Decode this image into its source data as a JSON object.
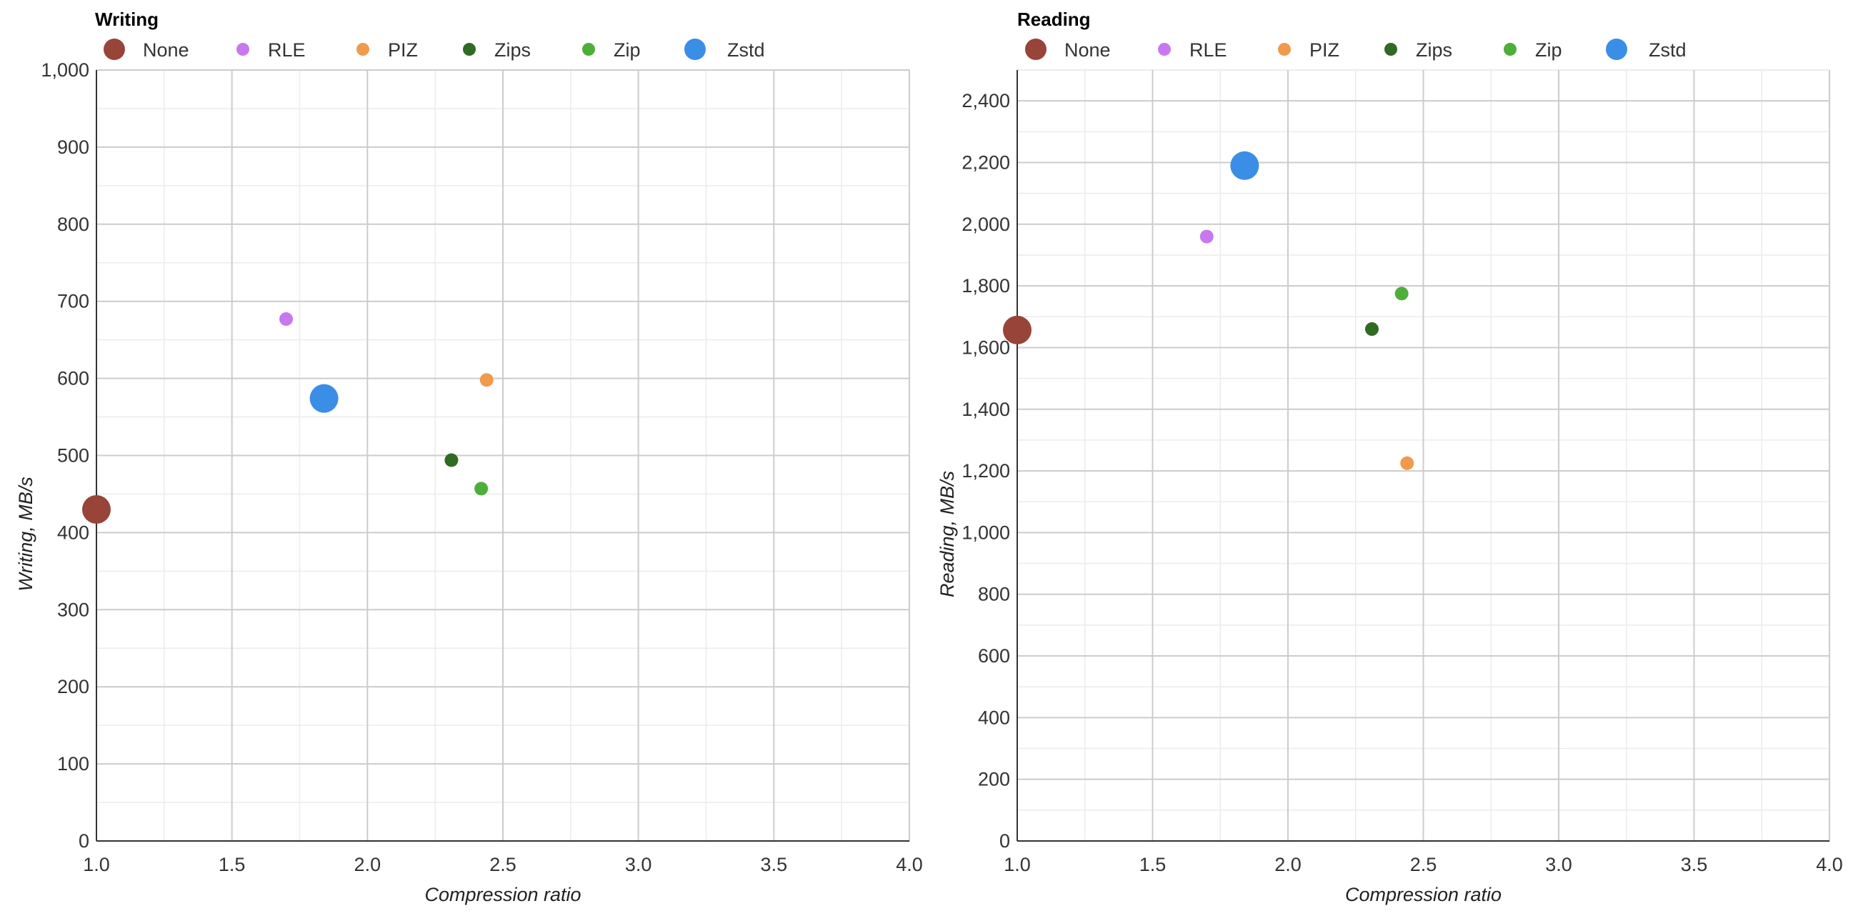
{
  "legend_colors": {
    "None": "#984439",
    "RLE": "#c878ee",
    "PIZ": "#f09a4c",
    "Zips": "#2f6b22",
    "Zip": "#4daf3a",
    "Zstd": "#3b8ee5"
  },
  "point_sizes": {
    "None": 20,
    "RLE": 10,
    "PIZ": 10,
    "Zips": 10,
    "Zip": 10,
    "Zstd": 20
  },
  "chart_data": [
    {
      "type": "scatter",
      "title": "Writing",
      "xlabel": "Compression ratio",
      "ylabel": "Writing, MB/s",
      "xlim": [
        1.0,
        4.0
      ],
      "ylim": [
        0,
        1000
      ],
      "x_ticks": [
        "1.0",
        "1.5",
        "2.0",
        "2.5",
        "3.0",
        "3.5",
        "4.0"
      ],
      "y_ticks": [
        "0",
        "100",
        "200",
        "300",
        "400",
        "500",
        "600",
        "700",
        "800",
        "900",
        "1,000"
      ],
      "y_tick_values": [
        0,
        100,
        200,
        300,
        400,
        500,
        600,
        700,
        800,
        900,
        1000
      ],
      "grid": true,
      "legend_position": "top",
      "series": [
        {
          "name": "None",
          "x": 1.0,
          "y": 430
        },
        {
          "name": "RLE",
          "x": 1.7,
          "y": 677
        },
        {
          "name": "PIZ",
          "x": 2.44,
          "y": 598
        },
        {
          "name": "Zips",
          "x": 2.31,
          "y": 494
        },
        {
          "name": "Zip",
          "x": 2.42,
          "y": 457
        },
        {
          "name": "Zstd",
          "x": 1.84,
          "y": 574
        }
      ]
    },
    {
      "type": "scatter",
      "title": "Reading",
      "xlabel": "Compression ratio",
      "ylabel": "Reading, MB/s",
      "xlim": [
        1.0,
        4.0
      ],
      "ylim": [
        0,
        2500
      ],
      "x_ticks": [
        "1.0",
        "1.5",
        "2.0",
        "2.5",
        "3.0",
        "3.5",
        "4.0"
      ],
      "y_ticks": [
        "0",
        "200",
        "400",
        "600",
        "800",
        "1,000",
        "1,200",
        "1,400",
        "1,600",
        "1,800",
        "2,000",
        "2,200",
        "2,400"
      ],
      "y_tick_values": [
        0,
        200,
        400,
        600,
        800,
        1000,
        1200,
        1400,
        1600,
        1800,
        2000,
        2200,
        2400
      ],
      "grid": true,
      "legend_position": "top",
      "series": [
        {
          "name": "None",
          "x": 1.0,
          "y": 1657
        },
        {
          "name": "RLE",
          "x": 1.7,
          "y": 1960
        },
        {
          "name": "PIZ",
          "x": 2.44,
          "y": 1225
        },
        {
          "name": "Zips",
          "x": 2.31,
          "y": 1660
        },
        {
          "name": "Zip",
          "x": 2.42,
          "y": 1775
        },
        {
          "name": "Zstd",
          "x": 1.84,
          "y": 2190
        }
      ]
    }
  ]
}
